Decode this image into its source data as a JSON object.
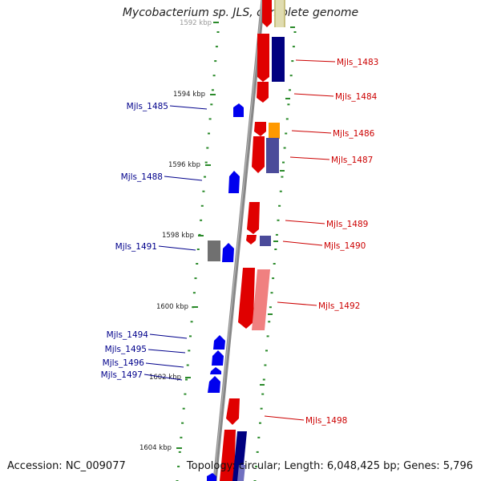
{
  "title": "Mycobacterium sp. JLS, complete genome",
  "footer": {
    "accession": "Accession: NC_009077",
    "topology": "Topology: circular; Length: 6,048,425 bp; Genes: 5,796"
  },
  "colors": {
    "backbone": "#888888",
    "tick": "#2a8a2a",
    "plus_label": "#00008b",
    "minus_label": "#cc0000",
    "red_gene": "#e00000",
    "blue_gene": "#0000ee",
    "navy_gene": "#000080",
    "slate_gene": "#4b4b9a",
    "pink_gene": "#f08080",
    "gray_gene": "#707070",
    "orange_gene": "#ff9900",
    "olive_gene": "#c8c080"
  },
  "scale_labels": [
    "1592 kbp",
    "1594 kbp",
    "1596 kbp",
    "1598 kbp",
    "1600 kbp",
    "1602 kbp",
    "1604 kbp"
  ],
  "gene_labels": [
    {
      "text": "Mjls_1483",
      "strand": "minus"
    },
    {
      "text": "Mjls_1484",
      "strand": "minus"
    },
    {
      "text": "Mjls_1485",
      "strand": "plus"
    },
    {
      "text": "Mjls_1486",
      "strand": "minus"
    },
    {
      "text": "Mjls_1487",
      "strand": "minus"
    },
    {
      "text": "Mjls_1488",
      "strand": "plus"
    },
    {
      "text": "Mjls_1489",
      "strand": "minus"
    },
    {
      "text": "Mjls_1490",
      "strand": "minus"
    },
    {
      "text": "Mjls_1491",
      "strand": "plus"
    },
    {
      "text": "Mjls_1492",
      "strand": "minus"
    },
    {
      "text": "Mjls_1494",
      "strand": "plus"
    },
    {
      "text": "Mjls_1495",
      "strand": "plus"
    },
    {
      "text": "Mjls_1496",
      "strand": "plus"
    },
    {
      "text": "Mjls_1497",
      "strand": "plus"
    },
    {
      "text": "Mjls_1498",
      "strand": "minus"
    }
  ]
}
